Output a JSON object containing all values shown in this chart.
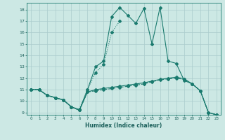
{
  "xlabel": "Humidex (Indice chaleur)",
  "bg_color": "#cce8e4",
  "grid_color": "#aacccc",
  "line_color": "#1a7a6e",
  "xlim": [
    -0.5,
    23.5
  ],
  "ylim": [
    8.8,
    18.6
  ],
  "line1_x": [
    0,
    1,
    2,
    3,
    4,
    5,
    6,
    7,
    8,
    9,
    10,
    11,
    12,
    13,
    14,
    15,
    16,
    17,
    18,
    19,
    20,
    21,
    22,
    23
  ],
  "line1_y": [
    11,
    11,
    10.5,
    10.3,
    10.1,
    9.5,
    9.2,
    10.8,
    11.0,
    11.1,
    11.2,
    11.3,
    11.4,
    11.5,
    11.6,
    11.75,
    11.9,
    12.0,
    12.1,
    11.95,
    11.5,
    10.9,
    9.0,
    8.8
  ],
  "line2_x": [
    0,
    1,
    2,
    3,
    4,
    5,
    6,
    7,
    8,
    9,
    10,
    11,
    12,
    13,
    14,
    15,
    16,
    17,
    18,
    19,
    20,
    21,
    22,
    23
  ],
  "line2_y": [
    11,
    11,
    10.5,
    10.3,
    10.1,
    9.5,
    9.2,
    11.0,
    13.0,
    13.5,
    17.4,
    18.2,
    17.5,
    16.8,
    18.1,
    15.0,
    18.2,
    13.5,
    13.3,
    11.8,
    11.5,
    10.9,
    9.0,
    8.8
  ],
  "line3_x": [
    0,
    1,
    2,
    3,
    4,
    5,
    6,
    7,
    8,
    9,
    10,
    11
  ],
  "line3_y": [
    11,
    11,
    10.5,
    10.3,
    10.1,
    9.5,
    9.3,
    11.0,
    12.5,
    13.2,
    16.0,
    17.0
  ],
  "line4_x": [
    0,
    1,
    2,
    3,
    4,
    5,
    6,
    7,
    8,
    9,
    10,
    11,
    12,
    13,
    14,
    15,
    16,
    17,
    18,
    19,
    20,
    21,
    22,
    23
  ],
  "line4_y": [
    11,
    11,
    10.5,
    10.3,
    10.1,
    9.5,
    9.2,
    10.8,
    10.9,
    11.0,
    11.1,
    11.2,
    11.3,
    11.4,
    11.5,
    11.7,
    11.85,
    11.95,
    12.0,
    11.9,
    11.5,
    10.9,
    9.0,
    8.8
  ]
}
